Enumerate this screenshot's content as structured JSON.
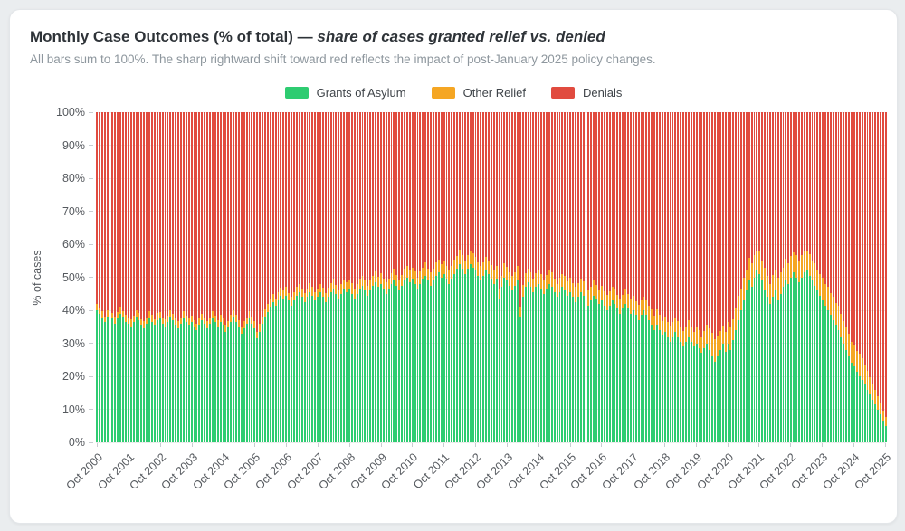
{
  "page": {
    "background": "#eaedef"
  },
  "card": {
    "title": {
      "regular": "Monthly Case Outcomes (% of total) — ",
      "italic": "share of cases granted relief vs. denied"
    },
    "subtitle": "All bars sum to 100%. The sharp rightward shift toward red reflects the impact of post-January 2025 policy changes."
  },
  "chart_data": {
    "type": "bar",
    "stacked": true,
    "stack_sum_pct": 100,
    "ylabel": "% of cases",
    "ylim": [
      0,
      100
    ],
    "y_tick_step": 10,
    "y_tick_labels": [
      "0%",
      "10%",
      "20%",
      "30%",
      "40%",
      "50%",
      "60%",
      "70%",
      "80%",
      "90%",
      "100%"
    ],
    "x_interval": "monthly",
    "x_points": 301,
    "x_start": "Oct 2000",
    "x_end": "Oct 2025",
    "x_tick_every_months": 12,
    "x_tick_labels": [
      "Oct 2000",
      "Oct 2001",
      "Oct 2002",
      "Oct 2003",
      "Oct 2004",
      "Oct 2005",
      "Oct 2006",
      "Oct 2007",
      "Oct 2008",
      "Oct 2009",
      "Oct 2010",
      "Oct 2011",
      "Oct 2012",
      "Oct 2013",
      "Oct 2014",
      "Oct 2015",
      "Oct 2016",
      "Oct 2017",
      "Oct 2018",
      "Oct 2019",
      "Oct 2020",
      "Oct 2021",
      "Oct 2022",
      "Oct 2023",
      "Oct 2024",
      "Oct 2025"
    ],
    "legend_position": "top-center",
    "grid": "horizontal",
    "series": [
      {
        "name": "Grants of Asylum",
        "color": "#2ecc71",
        "values": [
          40,
          39,
          37.5,
          36.5,
          38,
          39,
          37.5,
          36,
          37.5,
          39,
          38,
          36.5,
          36,
          35,
          36.5,
          38,
          37,
          35.5,
          34.5,
          36,
          37.5,
          36.5,
          35.5,
          37,
          37.5,
          36,
          35,
          36.5,
          38,
          37,
          35.5,
          34.5,
          36,
          37.5,
          36.5,
          35.5,
          36.5,
          35,
          34,
          35.5,
          37,
          36,
          34.5,
          36,
          37.5,
          36.5,
          35,
          36.5,
          35.5,
          33.5,
          35,
          36.5,
          38,
          36.5,
          35,
          33,
          34.5,
          36,
          37.5,
          36,
          34.5,
          31.5,
          33.5,
          36,
          38,
          39.5,
          41,
          42.5,
          41.5,
          43,
          44.5,
          43.5,
          44.5,
          43,
          41.5,
          43,
          44.5,
          45.5,
          44,
          42.5,
          44,
          45.5,
          44.5,
          43,
          44,
          45.5,
          44,
          42.5,
          44,
          45.5,
          46.5,
          45,
          43.5,
          45,
          46.5,
          45.5,
          46.5,
          45,
          43.5,
          45,
          46.5,
          47.5,
          46,
          44.5,
          46,
          47.5,
          48.5,
          47,
          48,
          46.5,
          45,
          46.5,
          48,
          49,
          47.5,
          46,
          47.5,
          49,
          50,
          48.5,
          49.5,
          48,
          46.5,
          48,
          49.5,
          50.5,
          49,
          47.5,
          49,
          50.5,
          51.5,
          50,
          51,
          49.5,
          48,
          49.5,
          51,
          52.5,
          54,
          52.5,
          51,
          52.5,
          54,
          53,
          52,
          50.5,
          49,
          50.5,
          52,
          51,
          49.5,
          48,
          49.5,
          43.5,
          47,
          50,
          49,
          47.5,
          46,
          47.5,
          49,
          38,
          44,
          47,
          48.5,
          47,
          45.5,
          47,
          48,
          46.5,
          45,
          46.5,
          48,
          47,
          45.5,
          44,
          45.5,
          47,
          46,
          44.5,
          45.5,
          44,
          42.5,
          44,
          45.5,
          44.5,
          43,
          41.5,
          43,
          44.5,
          43.5,
          42,
          43,
          41.5,
          40,
          41.5,
          43,
          42,
          40.5,
          39,
          40.5,
          42,
          40.5,
          39,
          40,
          38.5,
          37,
          38.5,
          40,
          38.5,
          37,
          35.5,
          34,
          35.5,
          34,
          32.5,
          33.5,
          32,
          30.5,
          32,
          33.5,
          32,
          30.5,
          29,
          30.5,
          32,
          30.5,
          29,
          30,
          28.5,
          27,
          28.5,
          30,
          28,
          26,
          24.5,
          26,
          28,
          30,
          27.5,
          30,
          28,
          31,
          34,
          37,
          40,
          43,
          46,
          49,
          47,
          50,
          52,
          51,
          49,
          46,
          44,
          42,
          44,
          46,
          43,
          45,
          47,
          49,
          48,
          50,
          51.5,
          50,
          48.5,
          50,
          51.5,
          52,
          50.5,
          49,
          47.5,
          46,
          44.5,
          43,
          41.5,
          40,
          38.5,
          37,
          35.5,
          34,
          32,
          30,
          28,
          26,
          24,
          23,
          21.5,
          20,
          19,
          17.5,
          16,
          14.5,
          13,
          11.5,
          10,
          8.5,
          6.5,
          5
        ]
      },
      {
        "name": "Other Relief",
        "color": "#f5a623",
        "values": [
          2,
          1.8,
          2.2,
          1.7,
          2,
          2.3,
          1.8,
          2.1,
          1.9,
          2.2,
          1.8,
          2,
          1.9,
          2.2,
          1.8,
          2,
          2.3,
          1.9,
          2.1,
          1.8,
          2.2,
          2,
          1.8,
          2.1,
          2,
          1.8,
          2.2,
          1.9,
          2.1,
          1.8,
          2,
          2.3,
          1.9,
          2.1,
          1.8,
          2,
          1.9,
          2.1,
          1.8,
          2.2,
          2,
          1.8,
          2.1,
          1.9,
          2.2,
          1.8,
          2,
          2.2,
          2,
          2.2,
          1.8,
          2.1,
          1.9,
          2.2,
          2,
          1.8,
          2.1,
          1.9,
          2.2,
          2,
          2.2,
          2,
          2.4,
          2.1,
          2.3,
          2.5,
          2.2,
          2.4,
          2.1,
          2.5,
          2.3,
          2.4,
          2.5,
          2.3,
          2.6,
          2.4,
          2.7,
          2.5,
          2.3,
          2.6,
          2.4,
          2.7,
          2.5,
          2.6,
          2.7,
          2.5,
          2.8,
          2.6,
          2.9,
          2.7,
          3,
          2.8,
          2.6,
          2.9,
          2.7,
          3,
          2.9,
          3.1,
          2.8,
          3,
          3.2,
          2.9,
          3.1,
          2.8,
          3.2,
          3,
          3.3,
          3.1,
          3.2,
          3,
          3.4,
          3.1,
          3.3,
          3.5,
          3.2,
          3.4,
          3.1,
          3.5,
          3.3,
          3.6,
          3.5,
          3.7,
          3.4,
          3.8,
          3.5,
          3.9,
          3.6,
          4,
          3.7,
          4.1,
          3.8,
          4,
          4,
          3.8,
          4.2,
          3.9,
          4.3,
          4,
          4.4,
          4.1,
          3.9,
          4.3,
          4,
          4.2,
          4.1,
          3.9,
          4.3,
          4,
          4.2,
          3.9,
          4.1,
          4.4,
          4,
          2.8,
          3.5,
          4.2,
          4.2,
          4,
          4.4,
          4.1,
          4.3,
          3.2,
          3.8,
          4.2,
          4,
          4.4,
          4.1,
          4.3,
          4.2,
          4.4,
          4,
          4.3,
          4.1,
          4.5,
          4.2,
          4,
          4.4,
          4.1,
          4.5,
          4.2,
          4.3,
          4.1,
          4.5,
          4.2,
          4,
          4.4,
          4.1,
          4.5,
          4.2,
          4.6,
          4.3,
          4.1,
          4.4,
          4.2,
          4.6,
          4.3,
          4.1,
          4.5,
          4.2,
          4.6,
          4.3,
          4.7,
          4.4,
          4.2,
          4.5,
          4.3,
          4.7,
          4.4,
          4.2,
          4.6,
          4.3,
          4.7,
          4.4,
          4.8,
          4.5,
          4.3,
          4.6,
          4.4,
          4.8,
          4.5,
          4.3,
          4.7,
          4.4,
          4.8,
          4.5,
          4.9,
          4.6,
          4.4,
          5,
          5.4,
          4.8,
          5.2,
          5.6,
          6.5,
          7.2,
          6.8,
          6.2,
          5.8,
          5.4,
          6,
          6.5,
          7,
          6.2,
          6.8,
          7.4,
          6.6,
          7,
          6.4,
          6.8,
          7.2,
          6.6,
          6.2,
          6.8,
          6.2,
          7,
          6.4,
          6,
          6.6,
          6.2,
          6.8,
          6.4,
          6,
          6.6,
          6.2,
          6.4,
          6,
          6.6,
          6.2,
          6.8,
          6.4,
          6,
          6.6,
          6.2,
          6.8,
          6.4,
          6.6,
          6.8,
          6.5,
          7,
          6.6,
          7.2,
          6.8,
          7.4,
          7,
          6.6,
          7.2,
          6.8,
          6.5,
          6.6,
          6.2,
          6.8,
          6.4,
          6,
          5.6,
          5.2,
          4.8,
          4.4,
          4,
          3.6,
          3.2,
          2.8
        ]
      },
      {
        "name": "Denials",
        "color": "#e14b3f",
        "derived": "100 minus Grants of Asylum minus Other Relief"
      }
    ]
  }
}
